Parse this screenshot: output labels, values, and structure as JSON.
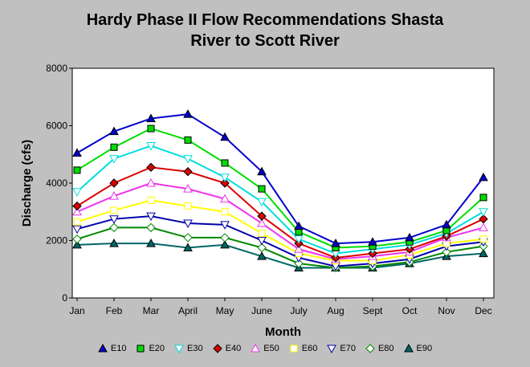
{
  "chart_data": {
    "type": "line",
    "title": "Hardy Phase II Flow Recommendations Shasta River to Scott River",
    "title_lines": [
      "Hardy Phase II Flow Recommendations Shasta",
      "River to Scott River"
    ],
    "xlabel": "Month",
    "ylabel": "Discharge (cfs)",
    "categories": [
      "Jan",
      "Feb",
      "Mar",
      "April",
      "May",
      "June",
      "July",
      "Aug",
      "Sept",
      "Oct",
      "Nov",
      "Dec"
    ],
    "ylim": [
      0,
      8000
    ],
    "yticks": [
      "0",
      "2000",
      "4000",
      "6000",
      "8000"
    ],
    "grid": false,
    "legend_position": "bottom",
    "series": [
      {
        "name": "E10",
        "color": "#0000cc",
        "marker": "triangle-up",
        "filled": true,
        "values": [
          5050,
          5800,
          6250,
          6400,
          5600,
          4400,
          2500,
          1900,
          1950,
          2100,
          2550,
          4200
        ]
      },
      {
        "name": "E20",
        "color": "#00dd00",
        "marker": "square",
        "filled": true,
        "values": [
          4450,
          5250,
          5900,
          5500,
          4700,
          3800,
          2300,
          1750,
          1800,
          1950,
          2350,
          3500
        ]
      },
      {
        "name": "E30",
        "color": "#00dddd",
        "marker": "triangle-down",
        "filled": false,
        "values": [
          3700,
          4850,
          5300,
          4850,
          4200,
          3350,
          2050,
          1550,
          1700,
          1850,
          2250,
          3000
        ]
      },
      {
        "name": "E40",
        "color": "#dd0000",
        "marker": "diamond",
        "filled": true,
        "values": [
          3200,
          4000,
          4550,
          4400,
          4000,
          2850,
          1900,
          1400,
          1550,
          1700,
          2150,
          2750
        ]
      },
      {
        "name": "E50",
        "color": "#ee33ee",
        "marker": "triangle-up",
        "filled": false,
        "values": [
          3000,
          3550,
          4000,
          3800,
          3450,
          2600,
          1700,
          1350,
          1450,
          1600,
          2100,
          2450
        ]
      },
      {
        "name": "E60",
        "color": "#ffff00",
        "marker": "square",
        "filled": false,
        "values": [
          2650,
          3050,
          3400,
          3200,
          3000,
          2250,
          1550,
          1300,
          1300,
          1500,
          1900,
          2050
        ]
      },
      {
        "name": "E70",
        "color": "#0000aa",
        "marker": "triangle-down",
        "filled": false,
        "values": [
          2400,
          2750,
          2850,
          2600,
          2550,
          2000,
          1400,
          1100,
          1200,
          1350,
          1800,
          1950
        ]
      },
      {
        "name": "E80",
        "color": "#008800",
        "marker": "diamond",
        "filled": false,
        "values": [
          2050,
          2450,
          2450,
          2100,
          2100,
          1750,
          1200,
          1050,
          1100,
          1250,
          1600,
          1800
        ]
      },
      {
        "name": "E90",
        "color": "#006666",
        "marker": "triangle-up",
        "filled": true,
        "values": [
          1850,
          1900,
          1900,
          1750,
          1850,
          1450,
          1050,
          1050,
          1050,
          1200,
          1450,
          1550
        ]
      }
    ]
  }
}
